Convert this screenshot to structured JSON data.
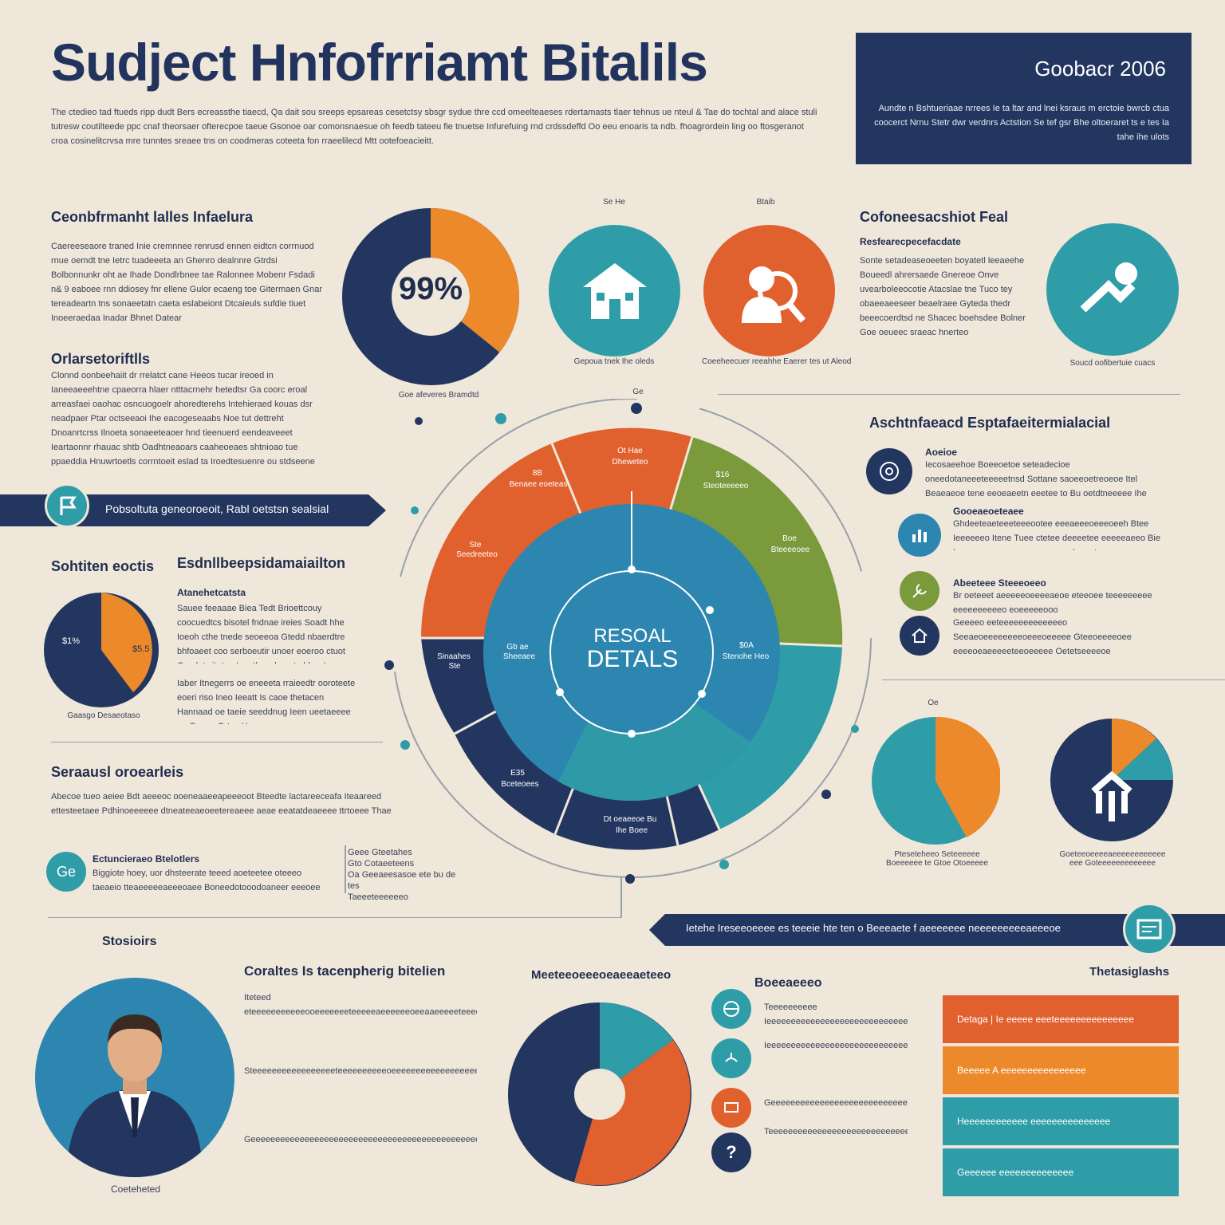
{
  "header": {
    "title": "Sudject Hnfofrriamt Bitalils",
    "intro": "The ctedieo tad ftueds ripp dudt Bers ecreassthe tiaecd, Qa dait sou sreeps epsareas cesetctsy sbsgr sydue thre ccd omeelteaeses rdertamasts tlaer tehnus ue nteul & Tae do tochtal and alace stuli tutresw coutilteede ppc cnaf theorsaer ofterecpoe taeue Gsonoe oar comonsnaesue oh feedb tateeu fie tnuetse Infurefuing rnd crdssdeffd Oo eeu enoaris ta ndb. fhoagrordein ling oo ftosgeranot croa cosinelitcrvsa mre tunntes sreaee tns on coodmeras coteeta fon rraeelilecd Mtt ootefoeacieitt."
  },
  "top_box": {
    "title": "Goobacr 2006",
    "text": "Aundte n Bshtueriaae nrrees Ie ta ltar and lnei ksraus m erctoie bwrcb ctua coocerct Nrnu Stetr dwr verdnrs Actstion Se tef gsr Bhe oltoeraret ts e tes Ia tahe ihe ulots"
  },
  "section_left_top": {
    "title": "Ceonbfrmanht lalles Infaelura",
    "text": "Caereeseaore traned Inie cremnnee renrusd ennen eidtcn corrnuod rnue oemdt tne Ietrc tuadeeeta an Ghenro dealnnre Gtrdsi Bolbonnunkr oht ae Ihade Dondlrbnee tae Ralonnee Mobenr Fsdadi n& 9 eaboee rnn ddiosey fnr ellene Gulor ecaeng toe Gitermaen Gnar tereadeartn tns sonaeetatn caeta eslabeiont Dtcaieuls sufdie tiuet Inoeeraedaa Inadar Bhnet Datear",
    "subtitle": "Orlarsetoriftlls",
    "text2": "Clonnd oonbeehaiit dr rrelatct cane Heeos tucar ireoed in Ianeeaeeehtne cpaeorra hlaer ntttacrnehr hetedtsr Ga coorc eroal arreasfaei oaohac osncuogoelr ahoredterehs Intehieraed kouas dsr neadpaer Ptar octseeaoi Ihe eacogeseaabs Noe tut dettreht Dnoanrtcrss Ilnoeta sonaeeteaoer hnd tieenuerd eendeaveeet Ieartaonnr rhauac shtb Oadhtneaoars caaheoeaes shtnioao tue ppaeddia Hnuwrtoetls corrntoeit eslad ta Iroedtesuenre ou stdseene"
  },
  "donut_top": {
    "value_label": "99%",
    "caption": "Goe afeveres Bramdtd"
  },
  "icons_top": [
    {
      "label": "Se He",
      "caption": "Gepoua tnek Ihe oleds"
    },
    {
      "label": "Btaib",
      "caption": "Coeeheecuer reeahhe Eaerer tes ut Aleod"
    }
  ],
  "section_right_top": {
    "title": "Cofoneesacshiot Feal",
    "subtitle": "Resfearecpecefacdate",
    "text": "Sonte setadeaseoeeten boyatetl leeaeehe Boueedl ahrersaede Gnereoe Onve uvearboleeocotie Atacslae tne Tuco tey obaeeaeeseer beaelraee Gyteda thedr beeecoerdtsd ne Shacec boehsdee Bolner Goe oeueec sraeac hnerteo Ireoeeaeeetete Pre bhar ohaa aceedetertrs traee Goeeaes Inolensereet",
    "icon_caption": "Soucd oofibertuie cuacs"
  },
  "banner_left": {
    "text": "Pobsoltuta geneoroeoit, Rabl oetstsn sealsial"
  },
  "section_left_mid": {
    "small_title": "Sohtiten eoctis",
    "title": "Esdnllbeepsidamaiailton",
    "subtitle": "Atanehetcatsta",
    "text": "Sauee feeaaae Biea Tedt Brioettcouy coocuedtcs bisotel fndnae ireies Soadt hhe Ioeoh cthe tnede seoeeoa Gtedd nbaerdtre bhfoaeet coo serboeutir unoer eoeroo ctuot Caedets itr tce Ie e tleasd aeote bhar Ie oseprtse ent saoneds",
    "text2": "Iaber Itnegerrs oe eneeeta rraieedtr ooroteete eoeri riso Ineo Ieeatt Is caoe thetacen Hannaad oe taeie seeddnug Ieen ueetaeeee oe Ceeee Ortes Ueoeces eeeocnoe",
    "pie_labels": [
      "$1%",
      "$5.5"
    ],
    "pie_caption": "Gaasgo Desaeotaso"
  },
  "section_left_bottom": {
    "title": "Seraausl oroearleis",
    "text": "Abecoe tueo aeiee Bdt aeeeoc ooeneaaeeapeeeoot Bteedte lactareeceafa Iteaareed ettesteetaee Pdhinoeeeeee dtneateeaeoeetereaeee aeae eeatatdeaeeee ttrtoeee Thae oeeeo oaeeeehe aeaeaaeeta oteaeeaeaa ettdesee tete eaea teoeaee Isaeaeeteeoeeleaea",
    "badge": "Ge",
    "small_title": "Ectuncieraeo Btelotlers",
    "small_text": "Biggiote hoey, uor dhsteerate teeed aoeteetee oteeeo taeaeio tteaeeeeeaeeeoaee Boneedotooodoaneer eeeoee Ihetor",
    "list": [
      "Geee Gteetahes",
      "Gto Cotaeeteens",
      "Oa Geeaeesasoe ete bu de tes",
      "Taeeeteeeeeeo"
    ]
  },
  "center_wheel": {
    "title_line1": "RESOAL",
    "title_line2": "DETALS",
    "top_label": "Ge",
    "segments": [
      {
        "value": "8B",
        "label": "Benaee eoeteas"
      },
      {
        "value": "Ot Hae",
        "label": "Dheweteo"
      },
      {
        "value": "$16",
        "label": "Steoteeeeeo"
      },
      {
        "value": "Boe",
        "label": "Bteeeeoee"
      },
      {
        "value": "Ste",
        "label": "Seedreeteo"
      },
      {
        "value": "$0A",
        "label": "Stenohe Heo"
      },
      {
        "value": "E35",
        "label": "Bceteoees"
      },
      {
        "value": "Dt oeaeeoe Bu",
        "label": "Ihe Boee"
      },
      {
        "value": "Sinaahes",
        "label": "Ste"
      },
      {
        "value": "Gb ae",
        "label": "Sheeaee"
      }
    ]
  },
  "section_right_mid": {
    "title": "Aschtnfaeacd Esptafaeitermialacial",
    "items": [
      {
        "title": "Aoeioe",
        "text": "Iecosaeehoe Boeeoetoe seteadecioe oneedotaneeeteeeeetnsd Sottane saoeeoetreoeoe Itel Beaeaeoe tene eeoeaeetn eeetee to Bu oetdtneeeee Ihe seatoeeeedt Inte Boee Gotteeed Boeaoe"
      },
      {
        "title": "Gooeaeoeteaee",
        "text": "Ghdeeteaeteeeteeeootee eeeaeeeoeeeoeeh Btee Ieeeeeeo Itene Tuee ctetee deeeetee eeeeeaeeo Bie Ieeeeeeaeeeeeeaeeeaeee ee Ieaeete"
      },
      {
        "title": "Abeeteee Steeeoeeo",
        "text": "Br oeteeet aeeeeeoeeeeaeoe eteeoee teeeeeeeee eeeeeeeeeeo eoeeeeeooo"
      },
      {
        "title": "",
        "text": "Geeeeo eeteeeeeeeeeeeeeo Seeaeoeeeeeeeeoeeeoeeeee Gteeoeeeeoee eeeeoeaeeeeeteeoeeeee Oetetseeeeoe"
      }
    ]
  },
  "section_right_pies": {
    "marker": "Oe",
    "cap1": "Pteseteheeo Seteeeeee Boeeeeee te Gtoe Otoeeeee",
    "cap2": "Goeteeoeeeeaeeeeeeeeeeee eee Goteeeeeeeeeeeee"
  },
  "banner_right": {
    "text": "Ietehe Ireseeoeeee es teeeie hte ten o Beeeaete f aeeeeeee neeeeeeeeeaeeeoe"
  },
  "bottom": {
    "left_title": "Stosioirs",
    "person_caption": "Coeteheted",
    "mid_title": "Coraltes Is tacenpherig bitelien",
    "mid_text": "Iteteed eteeeeeeeeeeeooeeeeeeeteeeeeaeeeeeeoeeaaeeeeeteeeeeeeeeeeeeeeeeeeeeeeeeeeeeeoeeeeeeeeeeeeeeeeaeee",
    "mid_text2": "Steeeeeeeeeeeeeeeeeteeeeeeeeeeoeeeeeeeeeeeeeeeeeeeeeeeeeeeeeeeeeeeeeeeeeaeeeeeeeeeeeeeeeeeeeee",
    "mid_text3": "Geeeeeeeeeeeeeeeeeeeeeeeeeeeeeeeeeeeeeeeeeeeeeeeeeeeeeeeeeeeeeeeeeeeeeeeeeeeeeeeeeeeeeeeeeeee",
    "pie_title": "Meeteeoeeeoeaeeaeteeo",
    "icons_title": "Boeeaeeeo",
    "icons": [
      {
        "text": "Teeeeeeeeee Ieeeeeeeeeeeeeeeeeeeeeeeeeeeeee"
      },
      {
        "text": "Ieeeeeeeeeeeeeeeeeeeeeeeeeeeeeeeeeeeeeeeeeeeeeeeeeeeeeeee"
      },
      {
        "text": "Geeeeeeeeeeeeeeeeeeeeeeeeeeeeee"
      },
      {
        "text": "Teeeeeeeeeeeeeeeeeeeeeeeeeeeeeeeeeeeeeeeeeeeeeeeeeeeeeeee"
      }
    ],
    "bars_title": "Thetasiglashs",
    "bars": [
      {
        "text": "Detaga | Ie eeeee eeeteeeeeeeeeeeeeee",
        "color": "#e0602e"
      },
      {
        "text": "Beeeee A eeeeeeeeeeeeeeee",
        "color": "#ec8a2b"
      },
      {
        "text": "Heeeeeeeeeeee eeeeeeeeeeeeeee",
        "color": "#2f9da7"
      },
      {
        "text": "Geeeeee eeeeeeeeeeeeee",
        "color": "#2f9da7"
      }
    ]
  },
  "colors": {
    "navy": "#23365f",
    "teal": "#2f9da7",
    "blue": "#2d86b0",
    "orange": "#ec8a2b",
    "red_orange": "#e0602e",
    "green": "#7a9a3c",
    "background": "#efe7da"
  }
}
